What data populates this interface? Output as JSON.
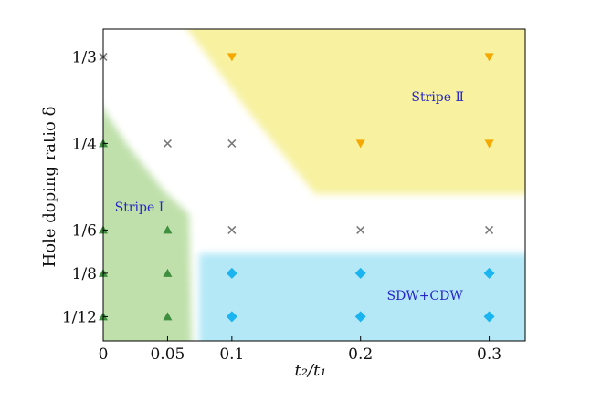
{
  "chart_data": {
    "type": "scatter",
    "title": "",
    "xlabel": "t₂/t₁",
    "ylabel": "Hole doping ratio δ",
    "x_ticks": [
      {
        "value": 0,
        "label": "0"
      },
      {
        "value": 0.05,
        "label": "0.05"
      },
      {
        "value": 0.1,
        "label": "0.1"
      },
      {
        "value": 0.2,
        "label": "0.2"
      },
      {
        "value": 0.3,
        "label": "0.3"
      }
    ],
    "y_ticks": [
      {
        "value": 0.08333,
        "label": "1/12"
      },
      {
        "value": 0.125,
        "label": "1/8"
      },
      {
        "value": 0.16667,
        "label": "1/6"
      },
      {
        "value": 0.25,
        "label": "1/4"
      },
      {
        "value": 0.33333,
        "label": "1/3"
      }
    ],
    "xlim": [
      0,
      0.328
    ],
    "ylim": [
      0.06,
      0.36
    ],
    "grid": false,
    "regions": [
      {
        "label": "Stripe I",
        "color": "#bfe0aa",
        "label_x": 0.028,
        "label_y": 0.189
      },
      {
        "label": "Stripe Ⅱ",
        "color": "#f7f1a0",
        "label_x": 0.26,
        "label_y": 0.295
      },
      {
        "label": "SDW+CDW",
        "color": "#b4e8f7",
        "label_x": 0.25,
        "label_y": 0.104
      }
    ],
    "series": [
      {
        "marker": "triangle-up",
        "color": "#3f8f3f",
        "points": [
          {
            "x": 0,
            "y": 0.08333
          },
          {
            "x": 0,
            "y": 0.125
          },
          {
            "x": 0,
            "y": 0.16667
          },
          {
            "x": 0,
            "y": 0.25
          },
          {
            "x": 0.05,
            "y": 0.08333
          },
          {
            "x": 0.05,
            "y": 0.125
          },
          {
            "x": 0.05,
            "y": 0.16667
          }
        ]
      },
      {
        "marker": "triangle-down",
        "color": "#f5a800",
        "points": [
          {
            "x": 0.1,
            "y": 0.33333
          },
          {
            "x": 0.3,
            "y": 0.33333
          },
          {
            "x": 0.2,
            "y": 0.25
          },
          {
            "x": 0.3,
            "y": 0.25
          }
        ]
      },
      {
        "marker": "diamond",
        "color": "#1ab5f0",
        "points": [
          {
            "x": 0.1,
            "y": 0.08333
          },
          {
            "x": 0.2,
            "y": 0.08333
          },
          {
            "x": 0.3,
            "y": 0.08333
          },
          {
            "x": 0.1,
            "y": 0.125
          },
          {
            "x": 0.2,
            "y": 0.125
          },
          {
            "x": 0.3,
            "y": 0.125
          }
        ]
      },
      {
        "marker": "x",
        "color": "#7a7a7a",
        "points": [
          {
            "x": 0,
            "y": 0.33333
          },
          {
            "x": 0.05,
            "y": 0.25
          },
          {
            "x": 0.1,
            "y": 0.25
          },
          {
            "x": 0.1,
            "y": 0.16667
          },
          {
            "x": 0.2,
            "y": 0.16667
          },
          {
            "x": 0.3,
            "y": 0.16667
          }
        ]
      }
    ]
  }
}
